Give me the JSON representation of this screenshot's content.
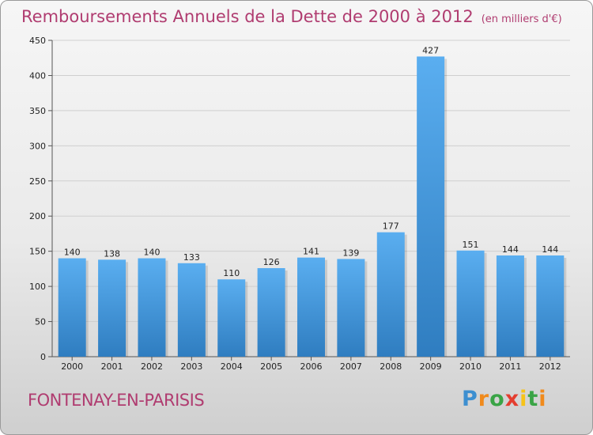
{
  "chart_data": {
    "type": "bar",
    "title": "Remboursements Annuels de la Dette de 2000 à 2012",
    "unit": "(en milliers d'€)",
    "categories": [
      "2000",
      "2001",
      "2002",
      "2003",
      "2004",
      "2005",
      "2006",
      "2007",
      "2008",
      "2009",
      "2010",
      "2011",
      "2012"
    ],
    "values": [
      140,
      138,
      140,
      133,
      110,
      126,
      141,
      139,
      177,
      427,
      151,
      144,
      144
    ],
    "yticks": [
      0,
      50,
      100,
      150,
      200,
      250,
      300,
      350,
      400,
      450
    ],
    "ylim": [
      0,
      450
    ],
    "xlabel": "",
    "ylabel": "",
    "grid": true,
    "bar_color": "#4a9fe0"
  },
  "footer": {
    "commune": "FONTENAY-EN-PARISIS",
    "logo": "Proxiti"
  }
}
